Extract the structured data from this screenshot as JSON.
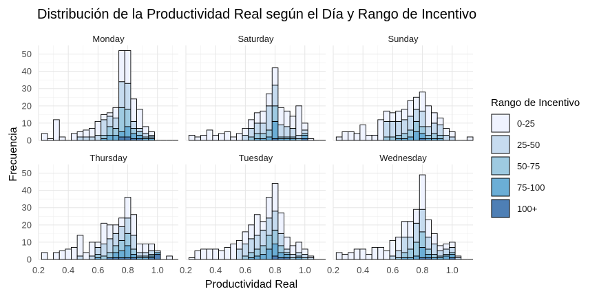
{
  "chart_data": {
    "type": "bar",
    "subtype": "stacked-histogram-faceted",
    "title": "Distribución de la Productividad Real según el Día y Rango de Incentivo",
    "xlabel": "Productividad Real",
    "ylabel": "Frecuencia",
    "xlim": [
      0.2,
      1.14
    ],
    "ylim": [
      0,
      55
    ],
    "x_ticks": [
      "0.2",
      "0.4",
      "0.6",
      "0.8",
      "1.0"
    ],
    "y_ticks": [
      "0",
      "10",
      "20",
      "30",
      "40",
      "50"
    ],
    "grid": true,
    "legend_position": "right",
    "legend_title": "Rango de Incentivo",
    "series": [
      {
        "name": "0-25",
        "color": "#eff3ff"
      },
      {
        "name": "25-50",
        "color": "#c6dbef"
      },
      {
        "name": "50-75",
        "color": "#9ecae1"
      },
      {
        "name": "75-100",
        "color": "#6baed6"
      },
      {
        "name": "100+",
        "color": "#4e7fb5"
      }
    ],
    "bin_width": 0.04,
    "bin_centers": [
      0.24,
      0.28,
      0.32,
      0.36,
      0.4,
      0.44,
      0.48,
      0.52,
      0.56,
      0.6,
      0.64,
      0.68,
      0.72,
      0.76,
      0.8,
      0.84,
      0.88,
      0.92,
      0.96,
      1.0,
      1.04,
      1.08,
      1.12
    ],
    "facets": [
      {
        "label": "Monday",
        "bins": [
          [
            4,
            0,
            0,
            0,
            0
          ],
          [
            1,
            0,
            0,
            0,
            0
          ],
          [
            12,
            0,
            0,
            0,
            0
          ],
          [
            2,
            0,
            0,
            0,
            0
          ],
          [
            0,
            0,
            0,
            0,
            0
          ],
          [
            4,
            0,
            0,
            0,
            0
          ],
          [
            3,
            2,
            0,
            0,
            0
          ],
          [
            4,
            2,
            0,
            0,
            0
          ],
          [
            5,
            2,
            0,
            0,
            0
          ],
          [
            8,
            3,
            0,
            0,
            0
          ],
          [
            3,
            9,
            2,
            1,
            0
          ],
          [
            2,
            6,
            5,
            3,
            0
          ],
          [
            6,
            6,
            4,
            3,
            0
          ],
          [
            18,
            15,
            14,
            3,
            2
          ],
          [
            19,
            15,
            10,
            6,
            2
          ],
          [
            13,
            4,
            3,
            3,
            1
          ],
          [
            11,
            2,
            2,
            2,
            1
          ],
          [
            4,
            2,
            1,
            1,
            0
          ],
          [
            2,
            1,
            1,
            1,
            0
          ],
          [
            0,
            0,
            0,
            0,
            0
          ],
          [
            0,
            0,
            0,
            0,
            0
          ],
          [
            0,
            0,
            0,
            0,
            0
          ],
          [
            0,
            0,
            0,
            0,
            0
          ]
        ]
      },
      {
        "label": "Saturday",
        "bins": [
          [
            3,
            0,
            0,
            0,
            0
          ],
          [
            2,
            0,
            0,
            0,
            0
          ],
          [
            3,
            0,
            0,
            0,
            0
          ],
          [
            6,
            0,
            0,
            0,
            0
          ],
          [
            3,
            0,
            0,
            0,
            0
          ],
          [
            4,
            0,
            0,
            0,
            0
          ],
          [
            5,
            0,
            0,
            0,
            0
          ],
          [
            2,
            0,
            0,
            0,
            0
          ],
          [
            4,
            0,
            0,
            0,
            0
          ],
          [
            4,
            3,
            0,
            0,
            0
          ],
          [
            5,
            5,
            2,
            0,
            0
          ],
          [
            6,
            6,
            3,
            1,
            0
          ],
          [
            7,
            6,
            3,
            1,
            0
          ],
          [
            7,
            14,
            4,
            2,
            0
          ],
          [
            10,
            12,
            9,
            10,
            1
          ],
          [
            10,
            7,
            1,
            1,
            0
          ],
          [
            9,
            6,
            1,
            1,
            0
          ],
          [
            7,
            5,
            1,
            1,
            0
          ],
          [
            17,
            2,
            1,
            0,
            0
          ],
          [
            4,
            2,
            1,
            2,
            1
          ],
          [
            1,
            0,
            0,
            0,
            0
          ],
          [
            0,
            0,
            0,
            0,
            0
          ],
          [
            0,
            0,
            0,
            0,
            0
          ]
        ]
      },
      {
        "label": "Sunday",
        "bins": [
          [
            2,
            0,
            0,
            0,
            0
          ],
          [
            5,
            0,
            0,
            0,
            0
          ],
          [
            5,
            0,
            0,
            0,
            0
          ],
          [
            4,
            0,
            0,
            0,
            0
          ],
          [
            9,
            0,
            0,
            0,
            0
          ],
          [
            3,
            0,
            0,
            0,
            0
          ],
          [
            3,
            0,
            0,
            0,
            0
          ],
          [
            12,
            0,
            0,
            0,
            0
          ],
          [
            6,
            9,
            2,
            0,
            0
          ],
          [
            5,
            9,
            2,
            0,
            0
          ],
          [
            6,
            8,
            2,
            1,
            0
          ],
          [
            6,
            8,
            3,
            1,
            0
          ],
          [
            9,
            8,
            4,
            2,
            0
          ],
          [
            7,
            7,
            6,
            5,
            0
          ],
          [
            11,
            9,
            4,
            3,
            1
          ],
          [
            12,
            5,
            2,
            1,
            0
          ],
          [
            6,
            6,
            3,
            1,
            0
          ],
          [
            4,
            6,
            2,
            1,
            0
          ],
          [
            4,
            3,
            0,
            0,
            0
          ],
          [
            3,
            2,
            0,
            0,
            0
          ],
          [
            0,
            0,
            0,
            0,
            0
          ],
          [
            0,
            0,
            0,
            0,
            0
          ],
          [
            2,
            0,
            0,
            0,
            0
          ]
        ]
      },
      {
        "label": "Thursday",
        "bins": [
          [
            4,
            0,
            0,
            0,
            0
          ],
          [
            0,
            0,
            0,
            0,
            0
          ],
          [
            4,
            0,
            0,
            0,
            0
          ],
          [
            5,
            0,
            0,
            0,
            0
          ],
          [
            6,
            0,
            0,
            0,
            0
          ],
          [
            7,
            0,
            0,
            0,
            0
          ],
          [
            12,
            2,
            0,
            0,
            0
          ],
          [
            4,
            0,
            0,
            0,
            0
          ],
          [
            8,
            2,
            0,
            0,
            0
          ],
          [
            3,
            4,
            2,
            1,
            0
          ],
          [
            12,
            7,
            2,
            0,
            0
          ],
          [
            8,
            8,
            3,
            0,
            1
          ],
          [
            5,
            7,
            4,
            3,
            1
          ],
          [
            5,
            8,
            6,
            4,
            1
          ],
          [
            12,
            9,
            7,
            7,
            1
          ],
          [
            12,
            8,
            3,
            2,
            1
          ],
          [
            5,
            2,
            1,
            1,
            0
          ],
          [
            5,
            2,
            1,
            1,
            0
          ],
          [
            4,
            2,
            1,
            1,
            1
          ],
          [
            0,
            1,
            0,
            1,
            3
          ],
          [
            0,
            0,
            0,
            0,
            0
          ],
          [
            2,
            0,
            0,
            0,
            0
          ],
          [
            0,
            0,
            0,
            0,
            0
          ]
        ]
      },
      {
        "label": "Tuesday",
        "bins": [
          [
            1,
            0,
            0,
            0,
            0
          ],
          [
            5,
            0,
            0,
            0,
            0
          ],
          [
            6,
            0,
            0,
            0,
            0
          ],
          [
            6,
            0,
            0,
            0,
            0
          ],
          [
            6,
            0,
            0,
            0,
            0
          ],
          [
            5,
            0,
            0,
            0,
            0
          ],
          [
            7,
            0,
            0,
            0,
            0
          ],
          [
            9,
            0,
            0,
            0,
            0
          ],
          [
            5,
            6,
            0,
            0,
            0
          ],
          [
            7,
            7,
            2,
            0,
            0
          ],
          [
            8,
            8,
            3,
            1,
            0
          ],
          [
            12,
            8,
            4,
            2,
            0
          ],
          [
            5,
            9,
            5,
            3,
            0
          ],
          [
            12,
            10,
            8,
            6,
            0
          ],
          [
            16,
            11,
            8,
            7,
            2
          ],
          [
            12,
            7,
            4,
            3,
            1
          ],
          [
            7,
            2,
            1,
            2,
            1
          ],
          [
            5,
            2,
            1,
            0,
            0
          ],
          [
            6,
            2,
            1,
            1,
            0
          ],
          [
            3,
            2,
            1,
            0,
            0
          ],
          [
            1,
            1,
            0,
            0,
            0
          ],
          [
            0,
            0,
            0,
            0,
            0
          ],
          [
            0,
            0,
            0,
            0,
            0
          ]
        ]
      },
      {
        "label": "Wednesday",
        "bins": [
          [
            4,
            0,
            0,
            0,
            0
          ],
          [
            3,
            0,
            0,
            0,
            0
          ],
          [
            4,
            0,
            0,
            0,
            0
          ],
          [
            6,
            0,
            0,
            0,
            0
          ],
          [
            6,
            0,
            0,
            0,
            0
          ],
          [
            3,
            0,
            0,
            0,
            0
          ],
          [
            7,
            0,
            0,
            0,
            0
          ],
          [
            7,
            0,
            0,
            0,
            0
          ],
          [
            5,
            0,
            0,
            0,
            0
          ],
          [
            9,
            2,
            0,
            0,
            0
          ],
          [
            8,
            4,
            1,
            0,
            0
          ],
          [
            9,
            9,
            3,
            1,
            0
          ],
          [
            9,
            7,
            5,
            1,
            0
          ],
          [
            8,
            11,
            8,
            2,
            0
          ],
          [
            20,
            13,
            9,
            6,
            1
          ],
          [
            10,
            7,
            3,
            2,
            1
          ],
          [
            6,
            6,
            2,
            1,
            0
          ],
          [
            3,
            3,
            1,
            1,
            0
          ],
          [
            3,
            3,
            1,
            2,
            0
          ],
          [
            3,
            3,
            1,
            2,
            1
          ],
          [
            1,
            1,
            0,
            0,
            0
          ],
          [
            0,
            0,
            0,
            0,
            0
          ],
          [
            0,
            0,
            0,
            0,
            0
          ]
        ]
      }
    ]
  }
}
